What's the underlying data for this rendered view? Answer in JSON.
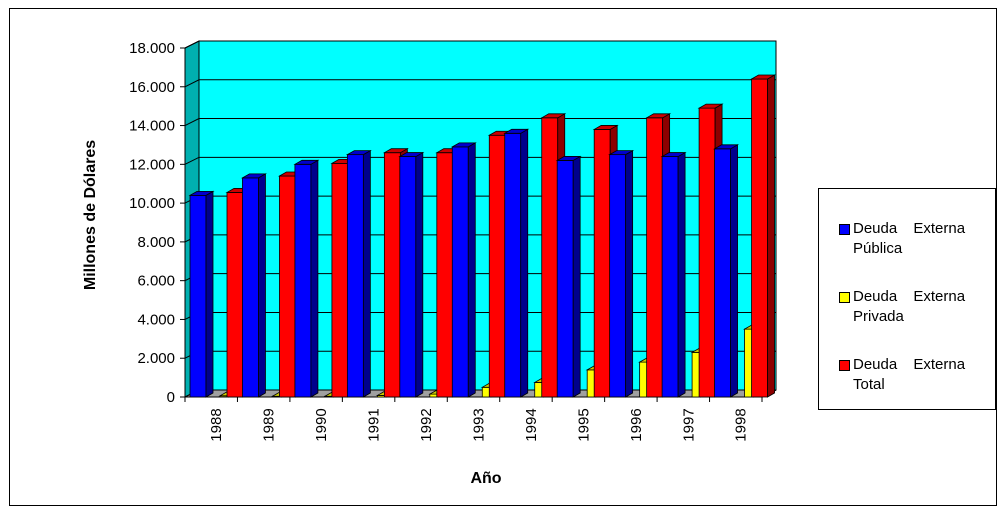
{
  "chart_data": {
    "type": "bar",
    "title": "",
    "xlabel": "Año",
    "ylabel": "Millones de Dólares",
    "ylim": [
      0,
      18000
    ],
    "yticks": [
      "0",
      "2.000",
      "4.000",
      "6.000",
      "8.000",
      "10.000",
      "12.000",
      "14.000",
      "16.000",
      "18.000"
    ],
    "categories": [
      "1988",
      "1989",
      "1990",
      "1991",
      "1992",
      "1993",
      "1994",
      "1995",
      "1996",
      "1997",
      "1998"
    ],
    "series": [
      {
        "name": "Deuda Externa Pública",
        "color": "#0000FF",
        "values": [
          10400,
          11300,
          12000,
          12500,
          12400,
          12900,
          13600,
          12200,
          12500,
          12400,
          12800
        ]
      },
      {
        "name": "Deuda Externa Privada",
        "color": "#FFFF00",
        "values": [
          60,
          40,
          40,
          80,
          150,
          500,
          750,
          1400,
          1800,
          2300,
          3500
        ]
      },
      {
        "name": "Deuda Externa Total",
        "color": "#FF0000",
        "values": [
          10550,
          11400,
          12050,
          12600,
          12600,
          13500,
          14400,
          13800,
          14400,
          14900,
          16400
        ]
      }
    ],
    "plot_background": "#00FFFF",
    "grid": true,
    "legend_position": "right",
    "three_d": true
  }
}
